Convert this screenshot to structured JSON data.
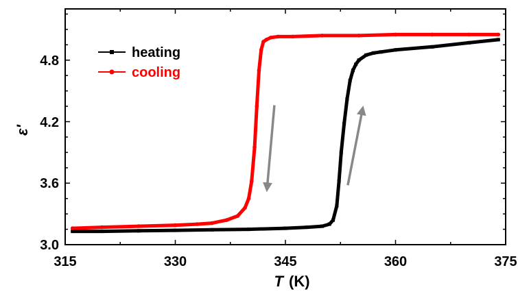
{
  "chart_data": {
    "type": "line",
    "xlabel_symbol": "T",
    "xlabel_unit": "(K)",
    "ylabel": "ε'",
    "xlim": [
      315,
      375
    ],
    "ylim": [
      3.0,
      5.3
    ],
    "xticks": [
      "315",
      "330",
      "345",
      "360",
      "375"
    ],
    "yticks": [
      "3.0",
      "3.6",
      "4.2",
      "4.8"
    ],
    "grid": false,
    "legend_position": "top-left",
    "series": [
      {
        "name": "heating",
        "color": "#000000",
        "marker": "square",
        "x": [
          316,
          320,
          325,
          330,
          335,
          340,
          345,
          348,
          350,
          351,
          351.5,
          352,
          352.3,
          352.6,
          353,
          353.4,
          353.8,
          354.2,
          354.6,
          355,
          356,
          357,
          358,
          360,
          365,
          370,
          374
        ],
        "y": [
          3.13,
          3.13,
          3.135,
          3.14,
          3.145,
          3.15,
          3.16,
          3.17,
          3.18,
          3.2,
          3.24,
          3.38,
          3.62,
          3.9,
          4.18,
          4.42,
          4.6,
          4.7,
          4.76,
          4.8,
          4.85,
          4.87,
          4.88,
          4.9,
          4.93,
          4.97,
          5.0
        ]
      },
      {
        "name": "cooling",
        "color": "#ff0000",
        "marker": "circle",
        "x": [
          316,
          320,
          325,
          330,
          333,
          335,
          337,
          338.5,
          339.5,
          340,
          340.4,
          340.8,
          341.1,
          341.4,
          341.7,
          342,
          342.4,
          343,
          344,
          346,
          350,
          355,
          360,
          365,
          370,
          374
        ],
        "y": [
          3.16,
          3.17,
          3.18,
          3.19,
          3.2,
          3.21,
          3.24,
          3.28,
          3.36,
          3.45,
          3.62,
          3.95,
          4.35,
          4.7,
          4.9,
          4.98,
          5.0,
          5.02,
          5.03,
          5.03,
          5.04,
          5.04,
          5.05,
          5.05,
          5.05,
          5.05
        ]
      }
    ],
    "annotations": [
      {
        "type": "arrow",
        "direction": "down",
        "color": "#888888",
        "from": [
          343.5,
          4.36
        ],
        "to": [
          342.5,
          3.55
        ]
      },
      {
        "type": "arrow",
        "direction": "up",
        "color": "#888888",
        "from": [
          353.5,
          3.58
        ],
        "to": [
          355.5,
          4.32
        ]
      }
    ]
  }
}
